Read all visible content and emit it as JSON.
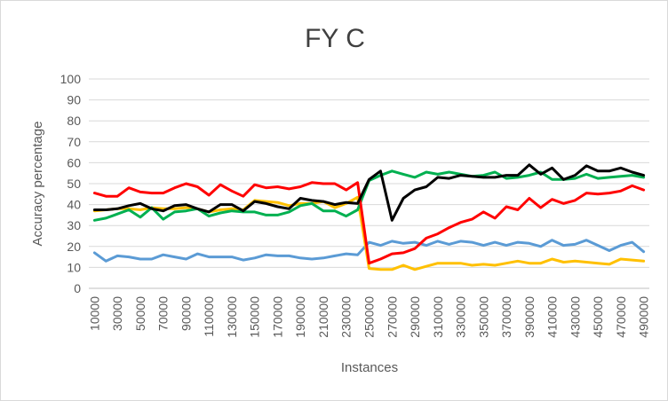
{
  "chart_data": {
    "type": "line",
    "title": "FY C",
    "xlabel": "Instances",
    "ylabel": "Accuracy percentage",
    "ylim": [
      0,
      100
    ],
    "yticks": [
      0,
      10,
      20,
      30,
      40,
      50,
      60,
      70,
      80,
      90,
      100
    ],
    "xtick_labels": [
      "10000",
      "30000",
      "50000",
      "70000",
      "90000",
      "110000",
      "130000",
      "150000",
      "170000",
      "190000",
      "210000",
      "230000",
      "250000",
      "270000",
      "290000",
      "310000",
      "330000",
      "350000",
      "370000",
      "390000",
      "410000",
      "430000",
      "450000",
      "470000",
      "490000"
    ],
    "grid": "horizontal",
    "legend": "none",
    "x": [
      10000,
      20000,
      30000,
      40000,
      50000,
      60000,
      70000,
      80000,
      90000,
      100000,
      110000,
      120000,
      130000,
      140000,
      150000,
      160000,
      170000,
      180000,
      190000,
      200000,
      210000,
      220000,
      230000,
      240000,
      250000,
      260000,
      270000,
      280000,
      290000,
      300000,
      310000,
      320000,
      330000,
      340000,
      350000,
      360000,
      370000,
      380000,
      390000,
      400000,
      410000,
      420000,
      430000,
      440000,
      450000,
      460000,
      470000,
      480000,
      490000
    ],
    "series": [
      {
        "color": "#5b9bd5",
        "values": [
          17,
          13,
          15.5,
          15,
          14,
          14,
          16,
          15,
          14,
          16.5,
          15,
          15,
          15,
          13.5,
          14.5,
          16,
          15.5,
          15.5,
          14.5,
          14,
          14.5,
          15.5,
          16.5,
          16,
          22,
          20.5,
          22.5,
          21.5,
          22,
          20.5,
          22.5,
          21,
          22.5,
          22,
          20.5,
          22,
          20.5,
          22,
          21.5,
          20,
          23,
          20.5,
          21,
          23,
          20.5,
          18,
          20.5,
          22,
          17.5
        ]
      },
      {
        "color": "#ffc000",
        "values": [
          37,
          37.5,
          38,
          38,
          37.5,
          38.5,
          38,
          38,
          38.5,
          38,
          36.5,
          37.5,
          38,
          37.5,
          42,
          41.5,
          41,
          39.5,
          40.5,
          40.5,
          41.5,
          38.5,
          40.5,
          43.5,
          9.5,
          9,
          9,
          11,
          9,
          10.5,
          12,
          12,
          12,
          11,
          11.5,
          11,
          12,
          13,
          12,
          12,
          14,
          12.5,
          13,
          12.5,
          12,
          11.5,
          14,
          13.5,
          13
        ]
      },
      {
        "color": "#00b050",
        "values": [
          32.5,
          33.5,
          35.5,
          37.5,
          34,
          38.5,
          33,
          36.5,
          37,
          38,
          34.5,
          36,
          37,
          36.5,
          36.5,
          35,
          35,
          36.5,
          39.5,
          40.5,
          37,
          37,
          34.5,
          37.5,
          51.5,
          54,
          56,
          54.5,
          53,
          55.5,
          54.5,
          55.5,
          54.5,
          53.5,
          54,
          55.5,
          52.5,
          53,
          54,
          55.5,
          52,
          52,
          52.5,
          54.5,
          52.5,
          53,
          53.5,
          54,
          53
        ]
      },
      {
        "color": "#ff0000",
        "values": [
          45.5,
          44,
          44,
          48,
          46,
          45.5,
          45.5,
          48,
          50,
          48.5,
          44.5,
          49.5,
          46.5,
          44,
          49.5,
          48,
          48.5,
          47.5,
          48.5,
          50.5,
          50,
          50,
          47,
          50.5,
          12,
          14,
          16.5,
          17,
          19,
          24,
          26,
          29,
          31.5,
          33,
          36.5,
          33.5,
          39,
          37.5,
          43,
          38.5,
          42.5,
          40.5,
          42,
          45.5,
          45,
          45.5,
          46.5,
          49,
          47
        ]
      },
      {
        "color": "#000000",
        "values": [
          37.5,
          37.5,
          38,
          39.5,
          40.5,
          38,
          37,
          39.5,
          40,
          38,
          36.5,
          40,
          40,
          37,
          41.5,
          40.5,
          39,
          38,
          43,
          42,
          41.5,
          40,
          41,
          40.5,
          52,
          56,
          32.5,
          43,
          47,
          48.5,
          53,
          52.5,
          54,
          53.5,
          53,
          53,
          54,
          54,
          59,
          54.5,
          57.5,
          52,
          54,
          58.5,
          56,
          56,
          57.5,
          55.5,
          54
        ]
      }
    ]
  }
}
